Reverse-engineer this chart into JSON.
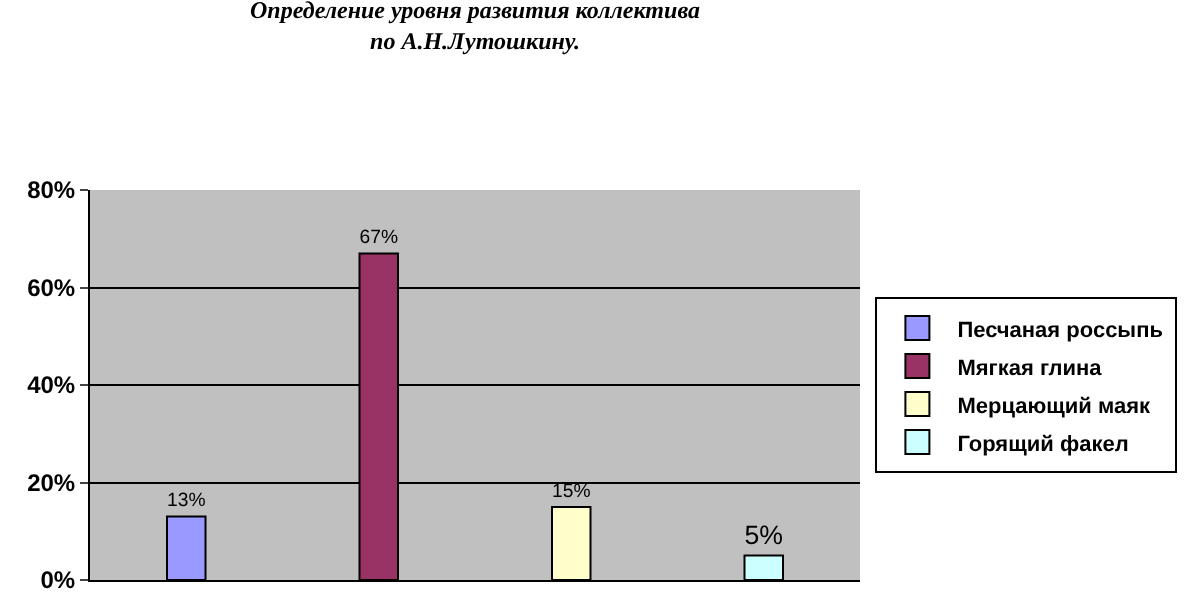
{
  "chart_data": {
    "type": "bar",
    "title": "Определение уровня развития коллектива\nпо А.Н.Лутошкину.",
    "categories": [
      null,
      null,
      null,
      null
    ],
    "series": [
      {
        "name": "Песчаная россыпь",
        "color": "#9999ff",
        "values": [
          13,
          null,
          null,
          null
        ],
        "value_labels": [
          "13%",
          null,
          null,
          null
        ]
      },
      {
        "name": "Мягкая глина",
        "color": "#993366",
        "values": [
          null,
          67,
          null,
          null
        ],
        "value_labels": [
          null,
          "67%",
          null,
          null
        ]
      },
      {
        "name": "Мерцающий маяк",
        "color": "#ffffcc",
        "values": [
          null,
          null,
          15,
          null
        ],
        "value_labels": [
          null,
          null,
          "15%",
          null
        ]
      },
      {
        "name": "Горящий факел",
        "color": "#ccffff",
        "values": [
          null,
          null,
          null,
          5
        ],
        "value_labels": [
          null,
          null,
          null,
          "5%"
        ]
      }
    ],
    "ylim": [
      0,
      80
    ],
    "yticks": [
      {
        "value": 0,
        "label": "0%"
      },
      {
        "value": 20,
        "label": "20%"
      },
      {
        "value": 40,
        "label": "40%"
      },
      {
        "value": 60,
        "label": "60%"
      },
      {
        "value": 80,
        "label": "80%"
      }
    ],
    "grid": "y",
    "legend": "right"
  }
}
